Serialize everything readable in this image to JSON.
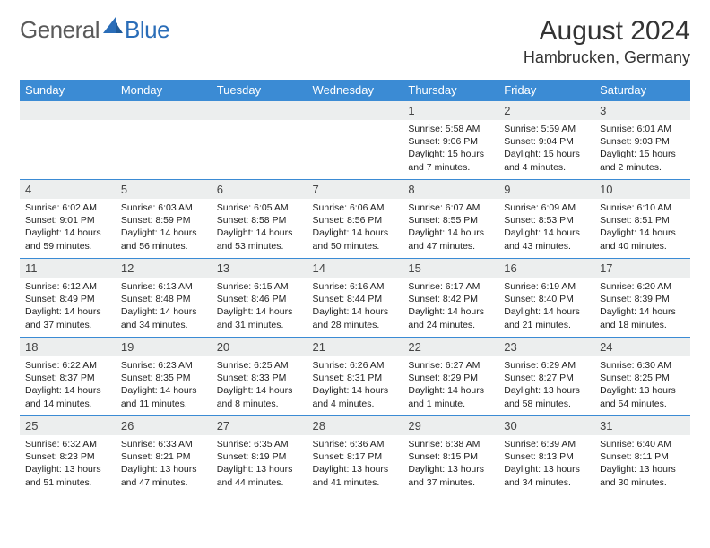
{
  "logo": {
    "text_left": "General",
    "text_right": "Blue",
    "color_left": "#5a5a5a",
    "color_right": "#2a6db8"
  },
  "title": "August 2024",
  "location": "Hambrucken, Germany",
  "colors": {
    "header_bg": "#3b8bd4",
    "header_fg": "#ffffff",
    "daynum_bg": "#eceeee",
    "row_border": "#3b8bd4",
    "text": "#222222"
  },
  "weekdays": [
    "Sunday",
    "Monday",
    "Tuesday",
    "Wednesday",
    "Thursday",
    "Friday",
    "Saturday"
  ],
  "cells": [
    {
      "day": "",
      "sunrise": "",
      "sunset": "",
      "daylight": ""
    },
    {
      "day": "",
      "sunrise": "",
      "sunset": "",
      "daylight": ""
    },
    {
      "day": "",
      "sunrise": "",
      "sunset": "",
      "daylight": ""
    },
    {
      "day": "",
      "sunrise": "",
      "sunset": "",
      "daylight": ""
    },
    {
      "day": "1",
      "sunrise": "Sunrise: 5:58 AM",
      "sunset": "Sunset: 9:06 PM",
      "daylight": "Daylight: 15 hours and 7 minutes."
    },
    {
      "day": "2",
      "sunrise": "Sunrise: 5:59 AM",
      "sunset": "Sunset: 9:04 PM",
      "daylight": "Daylight: 15 hours and 4 minutes."
    },
    {
      "day": "3",
      "sunrise": "Sunrise: 6:01 AM",
      "sunset": "Sunset: 9:03 PM",
      "daylight": "Daylight: 15 hours and 2 minutes."
    },
    {
      "day": "4",
      "sunrise": "Sunrise: 6:02 AM",
      "sunset": "Sunset: 9:01 PM",
      "daylight": "Daylight: 14 hours and 59 minutes."
    },
    {
      "day": "5",
      "sunrise": "Sunrise: 6:03 AM",
      "sunset": "Sunset: 8:59 PM",
      "daylight": "Daylight: 14 hours and 56 minutes."
    },
    {
      "day": "6",
      "sunrise": "Sunrise: 6:05 AM",
      "sunset": "Sunset: 8:58 PM",
      "daylight": "Daylight: 14 hours and 53 minutes."
    },
    {
      "day": "7",
      "sunrise": "Sunrise: 6:06 AM",
      "sunset": "Sunset: 8:56 PM",
      "daylight": "Daylight: 14 hours and 50 minutes."
    },
    {
      "day": "8",
      "sunrise": "Sunrise: 6:07 AM",
      "sunset": "Sunset: 8:55 PM",
      "daylight": "Daylight: 14 hours and 47 minutes."
    },
    {
      "day": "9",
      "sunrise": "Sunrise: 6:09 AM",
      "sunset": "Sunset: 8:53 PM",
      "daylight": "Daylight: 14 hours and 43 minutes."
    },
    {
      "day": "10",
      "sunrise": "Sunrise: 6:10 AM",
      "sunset": "Sunset: 8:51 PM",
      "daylight": "Daylight: 14 hours and 40 minutes."
    },
    {
      "day": "11",
      "sunrise": "Sunrise: 6:12 AM",
      "sunset": "Sunset: 8:49 PM",
      "daylight": "Daylight: 14 hours and 37 minutes."
    },
    {
      "day": "12",
      "sunrise": "Sunrise: 6:13 AM",
      "sunset": "Sunset: 8:48 PM",
      "daylight": "Daylight: 14 hours and 34 minutes."
    },
    {
      "day": "13",
      "sunrise": "Sunrise: 6:15 AM",
      "sunset": "Sunset: 8:46 PM",
      "daylight": "Daylight: 14 hours and 31 minutes."
    },
    {
      "day": "14",
      "sunrise": "Sunrise: 6:16 AM",
      "sunset": "Sunset: 8:44 PM",
      "daylight": "Daylight: 14 hours and 28 minutes."
    },
    {
      "day": "15",
      "sunrise": "Sunrise: 6:17 AM",
      "sunset": "Sunset: 8:42 PM",
      "daylight": "Daylight: 14 hours and 24 minutes."
    },
    {
      "day": "16",
      "sunrise": "Sunrise: 6:19 AM",
      "sunset": "Sunset: 8:40 PM",
      "daylight": "Daylight: 14 hours and 21 minutes."
    },
    {
      "day": "17",
      "sunrise": "Sunrise: 6:20 AM",
      "sunset": "Sunset: 8:39 PM",
      "daylight": "Daylight: 14 hours and 18 minutes."
    },
    {
      "day": "18",
      "sunrise": "Sunrise: 6:22 AM",
      "sunset": "Sunset: 8:37 PM",
      "daylight": "Daylight: 14 hours and 14 minutes."
    },
    {
      "day": "19",
      "sunrise": "Sunrise: 6:23 AM",
      "sunset": "Sunset: 8:35 PM",
      "daylight": "Daylight: 14 hours and 11 minutes."
    },
    {
      "day": "20",
      "sunrise": "Sunrise: 6:25 AM",
      "sunset": "Sunset: 8:33 PM",
      "daylight": "Daylight: 14 hours and 8 minutes."
    },
    {
      "day": "21",
      "sunrise": "Sunrise: 6:26 AM",
      "sunset": "Sunset: 8:31 PM",
      "daylight": "Daylight: 14 hours and 4 minutes."
    },
    {
      "day": "22",
      "sunrise": "Sunrise: 6:27 AM",
      "sunset": "Sunset: 8:29 PM",
      "daylight": "Daylight: 14 hours and 1 minute."
    },
    {
      "day": "23",
      "sunrise": "Sunrise: 6:29 AM",
      "sunset": "Sunset: 8:27 PM",
      "daylight": "Daylight: 13 hours and 58 minutes."
    },
    {
      "day": "24",
      "sunrise": "Sunrise: 6:30 AM",
      "sunset": "Sunset: 8:25 PM",
      "daylight": "Daylight: 13 hours and 54 minutes."
    },
    {
      "day": "25",
      "sunrise": "Sunrise: 6:32 AM",
      "sunset": "Sunset: 8:23 PM",
      "daylight": "Daylight: 13 hours and 51 minutes."
    },
    {
      "day": "26",
      "sunrise": "Sunrise: 6:33 AM",
      "sunset": "Sunset: 8:21 PM",
      "daylight": "Daylight: 13 hours and 47 minutes."
    },
    {
      "day": "27",
      "sunrise": "Sunrise: 6:35 AM",
      "sunset": "Sunset: 8:19 PM",
      "daylight": "Daylight: 13 hours and 44 minutes."
    },
    {
      "day": "28",
      "sunrise": "Sunrise: 6:36 AM",
      "sunset": "Sunset: 8:17 PM",
      "daylight": "Daylight: 13 hours and 41 minutes."
    },
    {
      "day": "29",
      "sunrise": "Sunrise: 6:38 AM",
      "sunset": "Sunset: 8:15 PM",
      "daylight": "Daylight: 13 hours and 37 minutes."
    },
    {
      "day": "30",
      "sunrise": "Sunrise: 6:39 AM",
      "sunset": "Sunset: 8:13 PM",
      "daylight": "Daylight: 13 hours and 34 minutes."
    },
    {
      "day": "31",
      "sunrise": "Sunrise: 6:40 AM",
      "sunset": "Sunset: 8:11 PM",
      "daylight": "Daylight: 13 hours and 30 minutes."
    }
  ]
}
